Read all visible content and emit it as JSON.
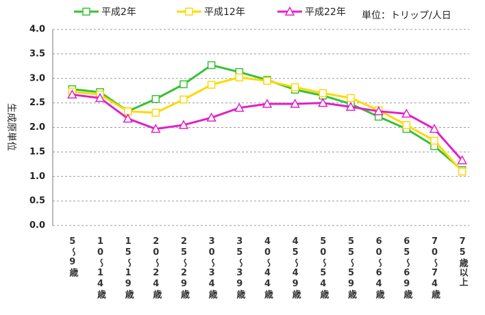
{
  "chart_data": {
    "type": "line",
    "unit_label": "単位：トリップ/人日",
    "y_label": "生成原単位",
    "categories": [
      "5〜9歳",
      "10〜14歳",
      "15〜19歳",
      "20〜24歳",
      "25〜29歳",
      "30〜34歳",
      "35〜39歳",
      "40〜44歳",
      "45〜49歳",
      "50〜54歳",
      "55〜59歳",
      "60〜64歳",
      "65〜69歳",
      "70〜74歳",
      "75歳以上"
    ],
    "series": [
      {
        "name": "平成2年",
        "color": "#33c233",
        "marker": "square",
        "values": [
          2.78,
          2.72,
          2.33,
          2.58,
          2.88,
          3.27,
          3.13,
          2.97,
          2.77,
          2.65,
          2.48,
          2.22,
          1.97,
          1.62,
          1.13
        ]
      },
      {
        "name": "平成12年",
        "color": "#ffd800",
        "marker": "square",
        "values": [
          2.73,
          2.67,
          2.33,
          2.3,
          2.57,
          2.87,
          3.02,
          2.95,
          2.82,
          2.7,
          2.6,
          2.35,
          2.05,
          1.73,
          1.1
        ]
      },
      {
        "name": "平成22年",
        "color": "#e020c8",
        "marker": "triangle",
        "values": [
          2.67,
          2.6,
          2.18,
          1.97,
          2.05,
          2.2,
          2.4,
          2.48,
          2.48,
          2.5,
          2.42,
          2.33,
          2.28,
          1.97,
          1.33
        ]
      }
    ],
    "ylim": [
      0,
      4
    ],
    "yticks": [
      {
        "value": 0,
        "label": "0.0"
      },
      {
        "value": 0.5,
        "label": "0.5"
      },
      {
        "value": 1,
        "label": "1.0"
      },
      {
        "value": 1.5,
        "label": "1.5"
      },
      {
        "value": 2,
        "label": "2.0"
      },
      {
        "value": 2.5,
        "label": "2.5"
      },
      {
        "value": 3,
        "label": "3.0"
      },
      {
        "value": 3.5,
        "label": "3.5"
      },
      {
        "value": 4,
        "label": "4.0"
      }
    ],
    "grid": true
  }
}
